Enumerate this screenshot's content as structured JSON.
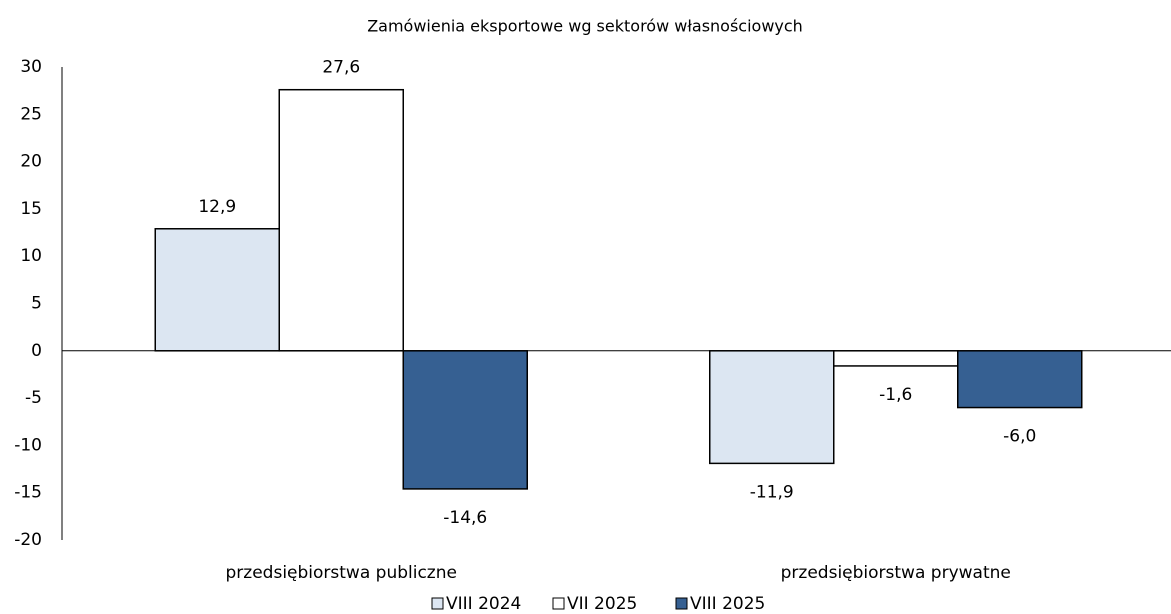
{
  "chart_data": {
    "type": "bar",
    "title": "Zamówienia eksportowe wg sektorów własnościowych",
    "categories": [
      "przedsiębiorstwa publiczne",
      "przedsiębiorstwa prywatne"
    ],
    "series": [
      {
        "name": "VIII 2024",
        "color": "#dce6f2",
        "values": [
          12.9,
          -11.9
        ],
        "value_labels": [
          "12,9",
          "-11,9"
        ]
      },
      {
        "name": "VII 2025",
        "color": "#ffffff",
        "values": [
          27.6,
          -1.6
        ],
        "value_labels": [
          "27,6",
          "-1,6"
        ]
      },
      {
        "name": "VIII 2025",
        "color": "#366092",
        "values": [
          -14.6,
          -6.0
        ],
        "value_labels": [
          "-14,6",
          "-6,0"
        ]
      }
    ],
    "ylim": [
      -20,
      30
    ],
    "yticks": [
      -20,
      -15,
      -10,
      -5,
      0,
      5,
      10,
      15,
      20,
      25,
      30
    ],
    "grid": false,
    "legend": "bottom"
  }
}
